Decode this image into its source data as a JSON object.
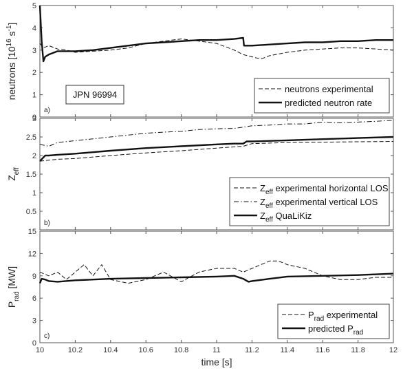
{
  "figure": {
    "shot_label": "JPN 96994",
    "xlabel": "time [s]",
    "x_ticks": [
      "10",
      "10.2",
      "10.4",
      "10.6",
      "10.8",
      "11",
      "11.2",
      "11.4",
      "11.6",
      "11.8",
      "12"
    ]
  },
  "chart_data": [
    {
      "type": "line",
      "panel_label": "a)",
      "ylabel_main": "neutrons [10",
      "ylabel_sup1": "16",
      "ylabel_mid": " s",
      "ylabel_sup2": "-1",
      "ylabel_end": "]",
      "xlim": [
        10,
        12
      ],
      "ylim": [
        0,
        5
      ],
      "y_ticks": [
        "0",
        "1",
        "2",
        "3",
        "4",
        "5"
      ],
      "legend_position": "lower-right",
      "series": [
        {
          "name": "neutrons experimental",
          "style": "dashed",
          "x": [
            10.0,
            10.02,
            10.05,
            10.1,
            10.15,
            10.2,
            10.3,
            10.4,
            10.5,
            10.6,
            10.7,
            10.8,
            10.9,
            11.0,
            11.1,
            11.15,
            11.2,
            11.25,
            11.3,
            11.4,
            11.5,
            11.6,
            11.7,
            11.8,
            11.9,
            12.0
          ],
          "y": [
            3.3,
            3.1,
            3.2,
            3.05,
            3.0,
            2.9,
            2.95,
            3.0,
            3.1,
            3.3,
            3.4,
            3.5,
            3.4,
            3.3,
            3.0,
            2.8,
            2.7,
            2.6,
            2.75,
            2.9,
            3.0,
            3.05,
            3.1,
            3.1,
            3.05,
            3.0
          ]
        },
        {
          "name": "predicted neutron rate",
          "style": "solid",
          "x": [
            10.0,
            10.01,
            10.02,
            10.03,
            10.05,
            10.1,
            10.15,
            10.2,
            10.3,
            10.4,
            10.5,
            10.6,
            10.7,
            10.8,
            10.9,
            11.0,
            11.1,
            11.15,
            11.155,
            11.2,
            11.3,
            11.4,
            11.5,
            11.6,
            11.7,
            11.8,
            11.9,
            12.0
          ],
          "y": [
            5.0,
            3.4,
            2.5,
            2.7,
            2.8,
            2.95,
            2.95,
            2.95,
            3.0,
            3.1,
            3.2,
            3.3,
            3.35,
            3.4,
            3.45,
            3.45,
            3.5,
            3.55,
            3.2,
            3.2,
            3.25,
            3.3,
            3.35,
            3.35,
            3.4,
            3.4,
            3.45,
            3.45
          ]
        }
      ]
    },
    {
      "type": "line",
      "panel_label": "b)",
      "ylabel_main": "Z",
      "ylabel_sub": "eff",
      "xlim": [
        10,
        12
      ],
      "ylim": [
        0,
        3
      ],
      "y_ticks": [
        "0.5",
        "1",
        "1.5",
        "2",
        "2.5",
        "3"
      ],
      "legend_position": "lower-right",
      "series": [
        {
          "name_main": "Z",
          "name_sub": "eff",
          "name_rest": " experimental horizontal LOS",
          "style": "dashed",
          "x": [
            10.0,
            10.1,
            10.2,
            10.4,
            10.6,
            10.8,
            11.0,
            11.15,
            11.2,
            11.4,
            11.6,
            11.8,
            12.0
          ],
          "y": [
            1.85,
            1.9,
            1.92,
            2.0,
            2.07,
            2.13,
            2.2,
            2.25,
            2.32,
            2.35,
            2.36,
            2.37,
            2.38
          ]
        },
        {
          "name_main": "Z",
          "name_sub": "eff",
          "name_rest": " experimental vertical LOS",
          "style": "dashdot",
          "x": [
            10.0,
            10.05,
            10.1,
            10.2,
            10.3,
            10.4,
            10.5,
            10.6,
            10.7,
            10.8,
            10.9,
            11.0,
            11.1,
            11.2,
            11.3,
            11.4,
            11.5,
            11.6,
            11.7,
            11.8,
            11.9,
            12.0
          ],
          "y": [
            2.3,
            2.25,
            2.35,
            2.4,
            2.45,
            2.5,
            2.55,
            2.6,
            2.63,
            2.65,
            2.7,
            2.72,
            2.73,
            2.8,
            2.82,
            2.85,
            2.85,
            2.9,
            2.88,
            2.9,
            2.92,
            2.95
          ]
        },
        {
          "name_main": "Z",
          "name_sub": "eff",
          "name_rest": " QuaLiKiz",
          "style": "solid",
          "x": [
            10.0,
            10.01,
            10.03,
            10.05,
            10.1,
            10.2,
            10.4,
            10.6,
            10.8,
            11.0,
            11.1,
            11.15,
            11.17,
            11.2,
            11.4,
            11.6,
            11.8,
            12.0
          ],
          "y": [
            1.85,
            1.9,
            2.0,
            2.0,
            2.02,
            2.05,
            2.13,
            2.2,
            2.25,
            2.3,
            2.32,
            2.32,
            2.38,
            2.38,
            2.41,
            2.44,
            2.47,
            2.5
          ]
        }
      ]
    },
    {
      "type": "line",
      "panel_label": "c)",
      "ylabel_main": "P",
      "ylabel_sub": "rad",
      "ylabel_rest": " [MW]",
      "xlim": [
        10,
        12
      ],
      "ylim": [
        0,
        15
      ],
      "y_ticks": [
        "0",
        "3",
        "6",
        "9",
        "12",
        "15"
      ],
      "legend_position": "lower-right",
      "series": [
        {
          "name_main": "P",
          "name_sub": "rad",
          "name_rest": " experimental",
          "style": "dashed",
          "x": [
            10.0,
            10.05,
            10.1,
            10.15,
            10.2,
            10.25,
            10.3,
            10.35,
            10.4,
            10.5,
            10.6,
            10.7,
            10.8,
            10.9,
            11.0,
            11.1,
            11.15,
            11.2,
            11.25,
            11.3,
            11.35,
            11.4,
            11.5,
            11.6,
            11.7,
            11.8,
            11.9,
            12.0
          ],
          "y": [
            9.5,
            9.0,
            9.5,
            8.5,
            9.5,
            10.5,
            9.0,
            10.5,
            8.5,
            8.0,
            8.5,
            9.5,
            8.2,
            9.5,
            10.0,
            10.0,
            9.5,
            10.0,
            10.5,
            11.0,
            11.0,
            10.5,
            10.0,
            9.0,
            8.5,
            8.5,
            8.8,
            8.8
          ]
        },
        {
          "name_main": "predicted P",
          "name_sub": "rad",
          "name_rest": "",
          "style": "solid",
          "x": [
            10.0,
            10.01,
            10.03,
            10.05,
            10.1,
            10.2,
            10.4,
            10.6,
            10.8,
            11.0,
            11.1,
            11.15,
            11.18,
            11.2,
            11.3,
            11.4,
            11.6,
            11.8,
            12.0
          ],
          "y": [
            8.0,
            8.6,
            8.5,
            8.3,
            8.2,
            8.4,
            8.6,
            8.7,
            8.8,
            8.9,
            9.0,
            8.6,
            8.2,
            8.3,
            8.6,
            8.9,
            9.0,
            9.1,
            9.3
          ]
        }
      ]
    }
  ]
}
